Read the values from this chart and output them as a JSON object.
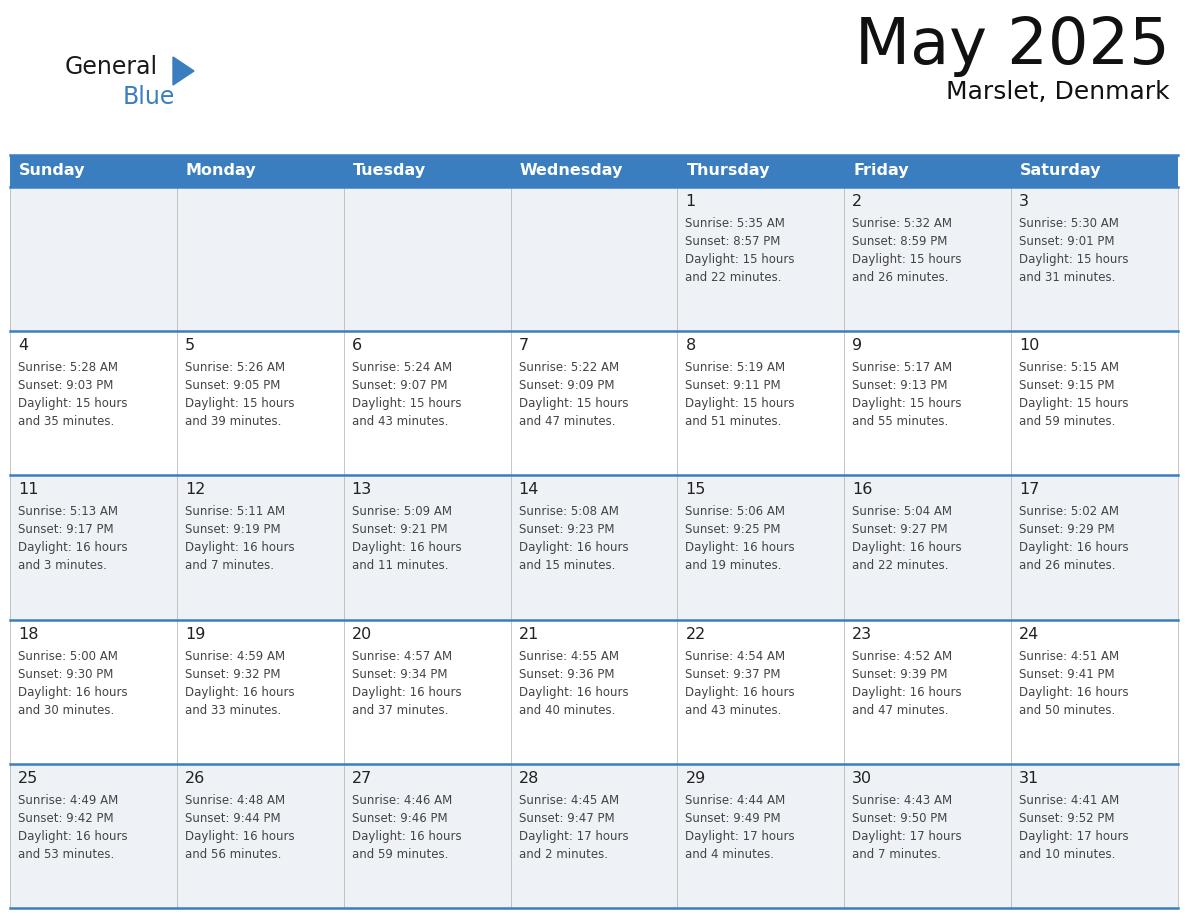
{
  "title": "May 2025",
  "subtitle": "Marslet, Denmark",
  "header_color": "#3a7ebf",
  "header_text_color": "#ffffff",
  "day_names": [
    "Sunday",
    "Monday",
    "Tuesday",
    "Wednesday",
    "Thursday",
    "Friday",
    "Saturday"
  ],
  "bg_color": "#ffffff",
  "cell_bg_even": "#eef2f7",
  "cell_bg_odd": "#ffffff",
  "grid_color": "#3a7ebf",
  "date_color": "#222222",
  "text_color": "#444444",
  "calendar": [
    [
      {
        "day": "",
        "info": ""
      },
      {
        "day": "",
        "info": ""
      },
      {
        "day": "",
        "info": ""
      },
      {
        "day": "",
        "info": ""
      },
      {
        "day": "1",
        "info": "Sunrise: 5:35 AM\nSunset: 8:57 PM\nDaylight: 15 hours\nand 22 minutes."
      },
      {
        "day": "2",
        "info": "Sunrise: 5:32 AM\nSunset: 8:59 PM\nDaylight: 15 hours\nand 26 minutes."
      },
      {
        "day": "3",
        "info": "Sunrise: 5:30 AM\nSunset: 9:01 PM\nDaylight: 15 hours\nand 31 minutes."
      }
    ],
    [
      {
        "day": "4",
        "info": "Sunrise: 5:28 AM\nSunset: 9:03 PM\nDaylight: 15 hours\nand 35 minutes."
      },
      {
        "day": "5",
        "info": "Sunrise: 5:26 AM\nSunset: 9:05 PM\nDaylight: 15 hours\nand 39 minutes."
      },
      {
        "day": "6",
        "info": "Sunrise: 5:24 AM\nSunset: 9:07 PM\nDaylight: 15 hours\nand 43 minutes."
      },
      {
        "day": "7",
        "info": "Sunrise: 5:22 AM\nSunset: 9:09 PM\nDaylight: 15 hours\nand 47 minutes."
      },
      {
        "day": "8",
        "info": "Sunrise: 5:19 AM\nSunset: 9:11 PM\nDaylight: 15 hours\nand 51 minutes."
      },
      {
        "day": "9",
        "info": "Sunrise: 5:17 AM\nSunset: 9:13 PM\nDaylight: 15 hours\nand 55 minutes."
      },
      {
        "day": "10",
        "info": "Sunrise: 5:15 AM\nSunset: 9:15 PM\nDaylight: 15 hours\nand 59 minutes."
      }
    ],
    [
      {
        "day": "11",
        "info": "Sunrise: 5:13 AM\nSunset: 9:17 PM\nDaylight: 16 hours\nand 3 minutes."
      },
      {
        "day": "12",
        "info": "Sunrise: 5:11 AM\nSunset: 9:19 PM\nDaylight: 16 hours\nand 7 minutes."
      },
      {
        "day": "13",
        "info": "Sunrise: 5:09 AM\nSunset: 9:21 PM\nDaylight: 16 hours\nand 11 minutes."
      },
      {
        "day": "14",
        "info": "Sunrise: 5:08 AM\nSunset: 9:23 PM\nDaylight: 16 hours\nand 15 minutes."
      },
      {
        "day": "15",
        "info": "Sunrise: 5:06 AM\nSunset: 9:25 PM\nDaylight: 16 hours\nand 19 minutes."
      },
      {
        "day": "16",
        "info": "Sunrise: 5:04 AM\nSunset: 9:27 PM\nDaylight: 16 hours\nand 22 minutes."
      },
      {
        "day": "17",
        "info": "Sunrise: 5:02 AM\nSunset: 9:29 PM\nDaylight: 16 hours\nand 26 minutes."
      }
    ],
    [
      {
        "day": "18",
        "info": "Sunrise: 5:00 AM\nSunset: 9:30 PM\nDaylight: 16 hours\nand 30 minutes."
      },
      {
        "day": "19",
        "info": "Sunrise: 4:59 AM\nSunset: 9:32 PM\nDaylight: 16 hours\nand 33 minutes."
      },
      {
        "day": "20",
        "info": "Sunrise: 4:57 AM\nSunset: 9:34 PM\nDaylight: 16 hours\nand 37 minutes."
      },
      {
        "day": "21",
        "info": "Sunrise: 4:55 AM\nSunset: 9:36 PM\nDaylight: 16 hours\nand 40 minutes."
      },
      {
        "day": "22",
        "info": "Sunrise: 4:54 AM\nSunset: 9:37 PM\nDaylight: 16 hours\nand 43 minutes."
      },
      {
        "day": "23",
        "info": "Sunrise: 4:52 AM\nSunset: 9:39 PM\nDaylight: 16 hours\nand 47 minutes."
      },
      {
        "day": "24",
        "info": "Sunrise: 4:51 AM\nSunset: 9:41 PM\nDaylight: 16 hours\nand 50 minutes."
      }
    ],
    [
      {
        "day": "25",
        "info": "Sunrise: 4:49 AM\nSunset: 9:42 PM\nDaylight: 16 hours\nand 53 minutes."
      },
      {
        "day": "26",
        "info": "Sunrise: 4:48 AM\nSunset: 9:44 PM\nDaylight: 16 hours\nand 56 minutes."
      },
      {
        "day": "27",
        "info": "Sunrise: 4:46 AM\nSunset: 9:46 PM\nDaylight: 16 hours\nand 59 minutes."
      },
      {
        "day": "28",
        "info": "Sunrise: 4:45 AM\nSunset: 9:47 PM\nDaylight: 17 hours\nand 2 minutes."
      },
      {
        "day": "29",
        "info": "Sunrise: 4:44 AM\nSunset: 9:49 PM\nDaylight: 17 hours\nand 4 minutes."
      },
      {
        "day": "30",
        "info": "Sunrise: 4:43 AM\nSunset: 9:50 PM\nDaylight: 17 hours\nand 7 minutes."
      },
      {
        "day": "31",
        "info": "Sunrise: 4:41 AM\nSunset: 9:52 PM\nDaylight: 17 hours\nand 10 minutes."
      }
    ]
  ]
}
